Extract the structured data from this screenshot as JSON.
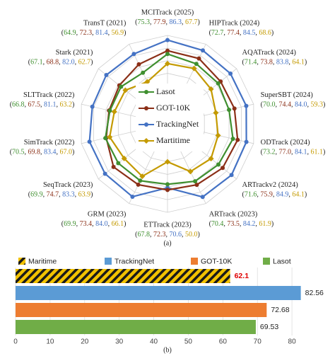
{
  "chart_data": [
    {
      "type": "radar",
      "caption": "(a)",
      "categories": [
        "MCITrack (2025)",
        "HIPTrack (2024)",
        "AQATrack (2024)",
        "SuperSBT (2024)",
        "ODTrack (2024)",
        "ARTrackv2 (2024)",
        "ARTrack (2023)",
        "ETTrack (2023)",
        "GRM (2023)",
        "SeqTrack (2023)",
        "SimTrack (2022)",
        "SLTTrack (2022)",
        "Stark (2021)",
        "TransT (2021)"
      ],
      "series": [
        {
          "name": "Lasot",
          "color": "#3f8f2f",
          "marker": "circle",
          "values": [
            75.3,
            72.7,
            71.4,
            70.0,
            73.2,
            71.6,
            70.4,
            67.8,
            69.9,
            69.9,
            70.5,
            66.8,
            67.1,
            64.9
          ],
          "value_labels": [
            "75.3",
            "72.7",
            "71.4",
            "70.0",
            "73.2",
            "71.6",
            "70.4",
            "67.8",
            "69.9",
            "69.9",
            "70.5",
            "66.8",
            "67.1",
            "64.9"
          ]
        },
        {
          "name": "GOT-10K",
          "color": "#8b2f17",
          "marker": "circle",
          "values": [
            77.9,
            77.4,
            73.8,
            74.4,
            77.0,
            75.9,
            73.5,
            72.3,
            73.4,
            74.7,
            69.8,
            67.5,
            68.8,
            72.3
          ],
          "value_labels": [
            "77.9",
            "77.4",
            "73.8",
            "74.4",
            "77.0",
            "75.9",
            "73.5",
            "72.3",
            "73.4",
            "74.7",
            "69.8",
            "67.5",
            "68.8",
            "72.3"
          ]
        },
        {
          "name": "TrackingNet",
          "color": "#4472c4",
          "marker": "circle",
          "values": [
            86.3,
            84.5,
            83.8,
            84.0,
            84.1,
            84.9,
            84.2,
            70.6,
            84.0,
            83.3,
            83.4,
            81.1,
            82.0,
            81.4
          ],
          "value_labels": [
            "86.3",
            "84.5",
            "83.8",
            "84.0",
            "84.1",
            "84.9",
            "84.2",
            "70.6",
            "84.0",
            "83.3",
            "83.4",
            "81.1",
            "82.0",
            "81.4"
          ]
        },
        {
          "name": "Martitime",
          "color": "#c49a00",
          "marker": "diamond",
          "values": [
            67.7,
            68.6,
            64.1,
            59.3,
            61.1,
            64.1,
            61.9,
            50.0,
            66.1,
            63.9,
            67.0,
            63.2,
            62.7,
            56.9
          ],
          "value_labels": [
            "67.7",
            "68.6",
            "64.1",
            "59.3",
            "61.1",
            "64.1",
            "61.9",
            "50.0",
            "66.1",
            "63.9",
            "67.0",
            "63.2",
            "62.7",
            "56.9"
          ]
        }
      ],
      "rlim": [
        20,
        90
      ],
      "rticks": [
        30,
        40,
        50,
        60,
        70,
        80,
        90
      ]
    },
    {
      "type": "hbar",
      "caption": "(b)",
      "categories": [
        "Maritime",
        "TrackingNet",
        "GOT-10K",
        "Lasot"
      ],
      "values": [
        62.1,
        82.56,
        72.68,
        69.53
      ],
      "colors": [
        "#f2c200",
        "#5b9bd5",
        "#ed7d31",
        "#70ad47"
      ],
      "hatch": [
        true,
        false,
        false,
        false
      ],
      "value_label_colors": [
        "#e00000",
        "#222222",
        "#222222",
        "#222222"
      ],
      "xlim": [
        0,
        90
      ],
      "xticks": [
        0,
        10,
        20,
        30,
        40,
        50,
        60,
        70,
        80
      ],
      "grid": true
    }
  ]
}
